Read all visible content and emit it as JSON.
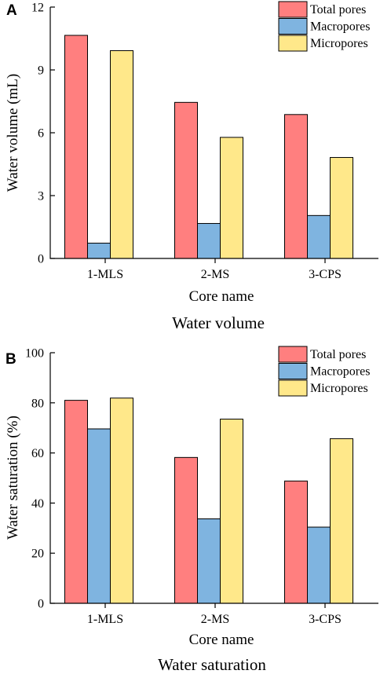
{
  "chart_data": [
    {
      "type": "bar",
      "panel_label": "A",
      "caption": "Water volume",
      "xlabel": "Core name",
      "ylabel": "Water volume (mL)",
      "categories": [
        "1-MLS",
        "2-MS",
        "3-CPS"
      ],
      "series": [
        {
          "name": "Total pores",
          "color": "#FF7F7F",
          "values": [
            10.65,
            7.45,
            6.87
          ]
        },
        {
          "name": "Macropores",
          "color": "#7FB4E0",
          "values": [
            0.73,
            1.67,
            2.05
          ]
        },
        {
          "name": "Micropores",
          "color": "#FFE88A",
          "values": [
            9.92,
            5.78,
            4.82
          ]
        }
      ],
      "ylim": [
        0,
        12
      ],
      "yticks": [
        "0",
        "3",
        "6",
        "9",
        "12"
      ],
      "legend_position": "top-right",
      "grid": false
    },
    {
      "type": "bar",
      "panel_label": "B",
      "caption": "Water saturation",
      "xlabel": "Core name",
      "ylabel": "Water saturation (%)",
      "categories": [
        "1-MLS",
        "2-MS",
        "3-CPS"
      ],
      "series": [
        {
          "name": "Total pores",
          "color": "#FF7F7F",
          "values": [
            81.0,
            58.2,
            48.8
          ]
        },
        {
          "name": "Macropores",
          "color": "#7FB4E0",
          "values": [
            69.6,
            33.7,
            30.4
          ]
        },
        {
          "name": "Micropores",
          "color": "#FFE88A",
          "values": [
            81.9,
            73.5,
            65.7
          ]
        }
      ],
      "ylim": [
        0,
        100
      ],
      "yticks": [
        "0",
        "20",
        "40",
        "60",
        "80",
        "100"
      ],
      "legend_position": "top-right",
      "grid": false
    }
  ]
}
